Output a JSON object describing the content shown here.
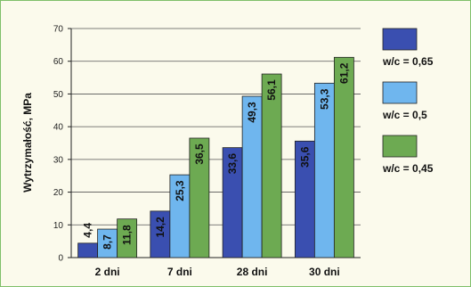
{
  "chart_data": {
    "type": "bar",
    "title": "",
    "xlabel": "",
    "ylabel": "Wytrzymałość, MPa",
    "ylim": [
      0,
      70
    ],
    "yticks": [
      0,
      10,
      20,
      30,
      40,
      50,
      60,
      70
    ],
    "grid": true,
    "legend_position": "right",
    "categories": [
      "2 dni",
      "7 dni",
      "28 dni",
      "30 dni"
    ],
    "series": [
      {
        "name": "w/c = 0,65",
        "color": "#3a4fb0",
        "values": [
          4.4,
          14.2,
          33.6,
          35.6
        ],
        "labels": [
          "4,4",
          "14,2",
          "33,6",
          "35,6"
        ]
      },
      {
        "name": "w/c = 0,5",
        "color": "#6fb6ee",
        "values": [
          8.7,
          25.3,
          49.3,
          53.3
        ],
        "labels": [
          "8,7",
          "25,3",
          "49,3",
          "53,3"
        ]
      },
      {
        "name": "w/c = 0,45",
        "color": "#6daa52",
        "values": [
          11.8,
          36.5,
          56.1,
          61.2
        ],
        "labels": [
          "11,8",
          "36,5",
          "56,1",
          "61,2"
        ]
      }
    ]
  }
}
